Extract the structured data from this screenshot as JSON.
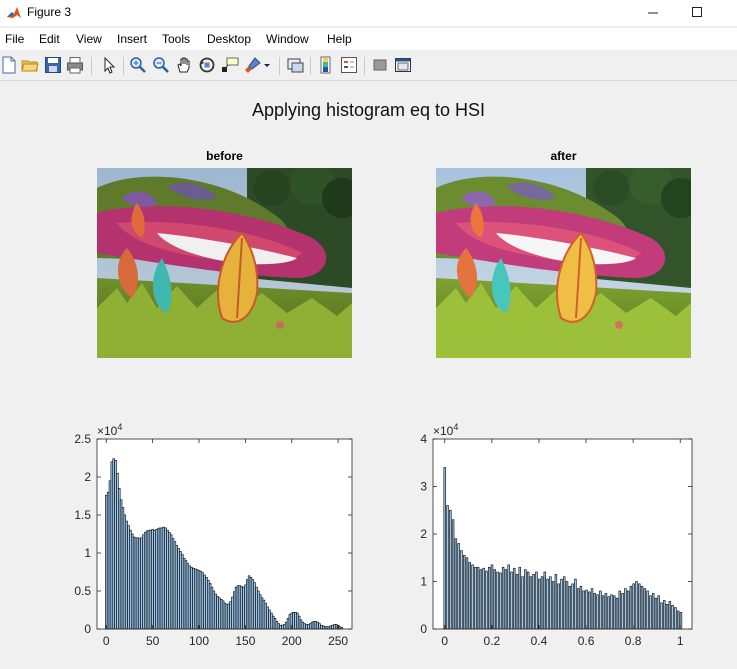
{
  "window": {
    "title": "Figure 3",
    "minimize_icon": "minimize-icon",
    "maximize_icon": "maximize-icon"
  },
  "menu": [
    "File",
    "Edit",
    "View",
    "Insert",
    "Tools",
    "Desktop",
    "Window",
    "Help"
  ],
  "toolbar": {
    "icons": [
      "new-figure-icon",
      "open-file-icon",
      "save-icon",
      "print-icon",
      "select-arrow-icon",
      "zoom-in-icon",
      "zoom-out-icon",
      "pan-hand-icon",
      "rotate-3d-icon",
      "data-cursor-icon",
      "brush-icon",
      "dropdown-arrow-icon",
      "link-plot-icon",
      "colorbar-icon",
      "legend-icon",
      "hide-plot-tools-icon",
      "show-plot-tools-icon"
    ]
  },
  "figure": {
    "title": "Applying histogram eq to HSI"
  },
  "images": [
    {
      "title": "before",
      "content": "garden flower-bed photo (Cheshire cat topiary)"
    },
    {
      "title": "after",
      "content": "garden flower-bed photo (Cheshire cat topiary), equalized"
    }
  ],
  "chart_data": [
    {
      "type": "bar",
      "title": "",
      "xlabel": "",
      "ylabel": "",
      "exponent_label": "×10",
      "exponent": "4",
      "xlim": [
        -10,
        265
      ],
      "ylim": [
        0,
        2.5
      ],
      "xticks": [
        "0",
        "50",
        "100",
        "150",
        "200",
        "250"
      ],
      "xtick_values": [
        0,
        50,
        100,
        150,
        200,
        250
      ],
      "yticks": [
        "0",
        "0.5",
        "1",
        "1.5",
        "2",
        "2.5"
      ],
      "ytick_values": [
        0,
        0.5,
        1,
        1.5,
        2,
        2.5
      ],
      "bar_width": 2,
      "bar_color": "#9ec9ef",
      "x": [
        0,
        2,
        4,
        6,
        8,
        10,
        12,
        14,
        16,
        18,
        20,
        22,
        24,
        26,
        28,
        30,
        32,
        34,
        36,
        38,
        40,
        42,
        44,
        46,
        48,
        50,
        52,
        54,
        56,
        58,
        60,
        62,
        64,
        66,
        68,
        70,
        72,
        74,
        76,
        78,
        80,
        82,
        84,
        86,
        88,
        90,
        92,
        94,
        96,
        98,
        100,
        102,
        104,
        106,
        108,
        110,
        112,
        114,
        116,
        118,
        120,
        122,
        124,
        126,
        128,
        130,
        132,
        134,
        136,
        138,
        140,
        142,
        144,
        146,
        148,
        150,
        152,
        154,
        156,
        158,
        160,
        162,
        164,
        166,
        168,
        170,
        172,
        174,
        176,
        178,
        180,
        182,
        184,
        186,
        188,
        190,
        192,
        194,
        196,
        198,
        200,
        202,
        204,
        206,
        208,
        210,
        212,
        214,
        216,
        218,
        220,
        222,
        224,
        226,
        228,
        230,
        232,
        234,
        236,
        238,
        240,
        242,
        244,
        246,
        248,
        250,
        252,
        254
      ],
      "values": [
        1.76,
        1.8,
        1.95,
        2.2,
        2.24,
        2.22,
        2.05,
        1.85,
        1.7,
        1.6,
        1.5,
        1.42,
        1.36,
        1.3,
        1.25,
        1.21,
        1.2,
        1.2,
        1.19,
        1.2,
        1.24,
        1.27,
        1.29,
        1.3,
        1.3,
        1.31,
        1.3,
        1.31,
        1.32,
        1.33,
        1.33,
        1.34,
        1.33,
        1.3,
        1.27,
        1.24,
        1.19,
        1.15,
        1.1,
        1.06,
        1.02,
        0.98,
        0.93,
        0.9,
        0.86,
        0.83,
        0.81,
        0.8,
        0.79,
        0.78,
        0.77,
        0.76,
        0.74,
        0.71,
        0.68,
        0.64,
        0.6,
        0.55,
        0.5,
        0.46,
        0.43,
        0.41,
        0.39,
        0.37,
        0.34,
        0.32,
        0.33,
        0.36,
        0.42,
        0.49,
        0.55,
        0.57,
        0.57,
        0.56,
        0.55,
        0.58,
        0.65,
        0.7,
        0.68,
        0.65,
        0.61,
        0.55,
        0.5,
        0.45,
        0.41,
        0.38,
        0.34,
        0.29,
        0.25,
        0.21,
        0.17,
        0.14,
        0.1,
        0.07,
        0.05,
        0.05,
        0.06,
        0.09,
        0.14,
        0.19,
        0.21,
        0.22,
        0.22,
        0.21,
        0.17,
        0.12,
        0.09,
        0.07,
        0.06,
        0.06,
        0.07,
        0.09,
        0.1,
        0.1,
        0.09,
        0.07,
        0.05,
        0.04,
        0.03,
        0.03,
        0.03,
        0.04,
        0.05,
        0.06,
        0.06,
        0.05,
        0.03,
        0.02
      ]
    },
    {
      "type": "bar",
      "title": "",
      "xlabel": "",
      "ylabel": "",
      "exponent_label": "×10",
      "exponent": "4",
      "xlim": [
        -0.05,
        1.05
      ],
      "ylim": [
        0,
        4
      ],
      "xticks": [
        "0",
        "0.2",
        "0.4",
        "0.6",
        "0.8",
        "1"
      ],
      "xtick_values": [
        0,
        0.2,
        0.4,
        0.6,
        0.8,
        1
      ],
      "yticks": [
        "0",
        "1",
        "2",
        "3",
        "4"
      ],
      "ytick_values": [
        0,
        1,
        2,
        3,
        4
      ],
      "bar_width": 0.0078,
      "bar_color": "#9ec9ef",
      "x": [
        0.0,
        0.0118,
        0.0236,
        0.0354,
        0.0472,
        0.059,
        0.0708,
        0.0826,
        0.0944,
        0.1062,
        0.118,
        0.1298,
        0.1416,
        0.1534,
        0.1652,
        0.177,
        0.1888,
        0.2006,
        0.2124,
        0.2242,
        0.236,
        0.2478,
        0.2596,
        0.2714,
        0.2832,
        0.295,
        0.3068,
        0.3186,
        0.3304,
        0.3422,
        0.354,
        0.3658,
        0.3776,
        0.3894,
        0.4012,
        0.413,
        0.4248,
        0.4366,
        0.4484,
        0.4602,
        0.472,
        0.4838,
        0.4956,
        0.5074,
        0.5192,
        0.531,
        0.5428,
        0.5546,
        0.5664,
        0.5782,
        0.59,
        0.6018,
        0.6136,
        0.6254,
        0.6372,
        0.649,
        0.6608,
        0.6726,
        0.6844,
        0.6962,
        0.708,
        0.7198,
        0.7316,
        0.7434,
        0.7552,
        0.767,
        0.7788,
        0.7906,
        0.8024,
        0.8142,
        0.826,
        0.8378,
        0.8496,
        0.8614,
        0.8732,
        0.885,
        0.8968,
        0.9086,
        0.9204,
        0.9322,
        0.944,
        0.9558,
        0.9676,
        0.9794,
        0.9912,
        1.003
      ],
      "values": [
        3.4,
        2.6,
        2.5,
        2.3,
        1.9,
        1.8,
        1.65,
        1.55,
        1.5,
        1.4,
        1.35,
        1.3,
        1.3,
        1.25,
        1.28,
        1.22,
        1.3,
        1.35,
        1.25,
        1.2,
        1.18,
        1.3,
        1.25,
        1.35,
        1.2,
        1.28,
        1.15,
        1.3,
        1.1,
        1.25,
        1.2,
        1.1,
        1.15,
        1.2,
        1.05,
        1.1,
        1.2,
        1.05,
        1.1,
        1.0,
        1.15,
        0.95,
        1.05,
        1.1,
        1.0,
        0.9,
        0.95,
        1.05,
        0.85,
        0.9,
        0.8,
        0.82,
        0.78,
        0.85,
        0.75,
        0.72,
        0.8,
        0.7,
        0.75,
        0.68,
        0.72,
        0.7,
        0.65,
        0.8,
        0.75,
        0.85,
        0.8,
        0.9,
        0.95,
        1.0,
        0.95,
        0.9,
        0.85,
        0.8,
        0.7,
        0.75,
        0.65,
        0.7,
        0.55,
        0.6,
        0.52,
        0.58,
        0.5,
        0.45,
        0.38,
        0.35
      ]
    }
  ]
}
